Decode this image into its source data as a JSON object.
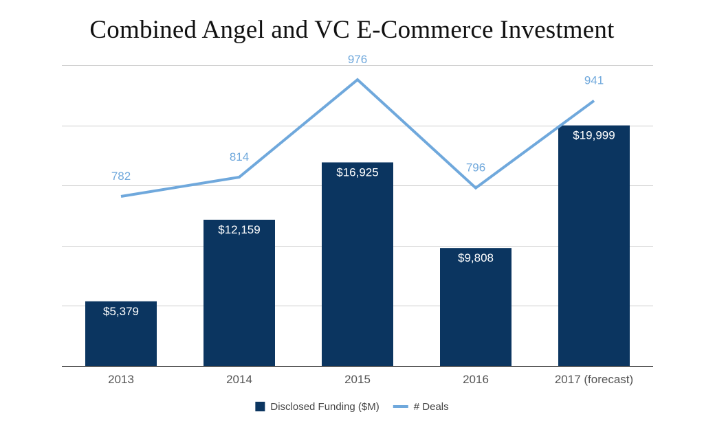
{
  "chart_data": {
    "type": "bar",
    "title": "Combined Angel and VC E-Commerce Investment",
    "categories": [
      "2013",
      "2014",
      "2015",
      "2016",
      "2017 (forecast)"
    ],
    "series": [
      {
        "name": "Disclosed Funding ($M)",
        "type": "bar",
        "values": [
          5379,
          12159,
          16925,
          9808,
          19999
        ],
        "labels": [
          "$5,379",
          "$12,159",
          "$16,925",
          "$9,808",
          "$19,999"
        ],
        "color": "#0b3560"
      },
      {
        "name": "# Deals",
        "type": "line",
        "values": [
          782,
          814,
          976,
          796,
          941
        ],
        "labels": [
          "782",
          "814",
          "976",
          "796",
          "941"
        ],
        "color": "#6fa8dc"
      }
    ],
    "ylim": [
      0,
      25000
    ],
    "line_ylim": [
      500,
      1000
    ],
    "grid": true,
    "legend": "bottom"
  }
}
